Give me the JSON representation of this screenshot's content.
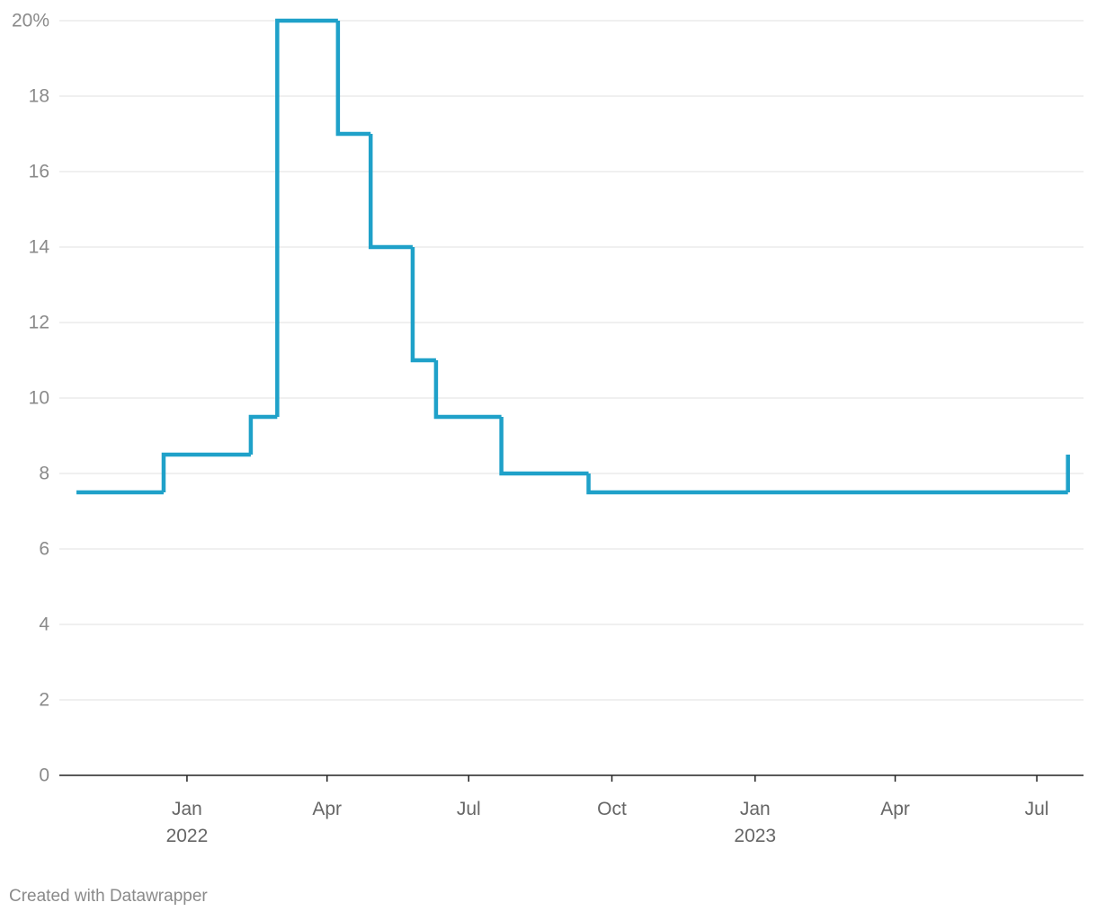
{
  "chart_data": {
    "type": "step-line",
    "x": [
      "2021-10-22",
      "2021-12-17",
      "2022-02-11",
      "2022-02-28",
      "2022-04-08",
      "2022-04-29",
      "2022-05-26",
      "2022-06-10",
      "2022-07-22",
      "2022-09-16",
      "2023-07-21"
    ],
    "series": [
      {
        "color": "#1fa1c9",
        "values": [
          7.5,
          8.5,
          9.5,
          20,
          17,
          14,
          11,
          9.5,
          8,
          7.5,
          8.5
        ]
      }
    ],
    "xlim": [
      "2021-10-11",
      "2023-07-31"
    ],
    "xticks": [
      {
        "value": "2022-01-01",
        "label": "Jan",
        "year": "2022"
      },
      {
        "value": "2022-04-01",
        "label": "Apr"
      },
      {
        "value": "2022-07-01",
        "label": "Jul"
      },
      {
        "value": "2022-10-01",
        "label": "Oct"
      },
      {
        "value": "2023-01-01",
        "label": "Jan",
        "year": "2023"
      },
      {
        "value": "2023-04-01",
        "label": "Apr"
      },
      {
        "value": "2023-07-01",
        "label": "Jul"
      }
    ],
    "ylim": [
      0,
      20
    ],
    "yticks": [
      0,
      2,
      4,
      6,
      8,
      10,
      12,
      14,
      16,
      18,
      {
        "value": 20,
        "label": "20%"
      }
    ],
    "grid": true,
    "credit": "Created with Datawrapper"
  }
}
